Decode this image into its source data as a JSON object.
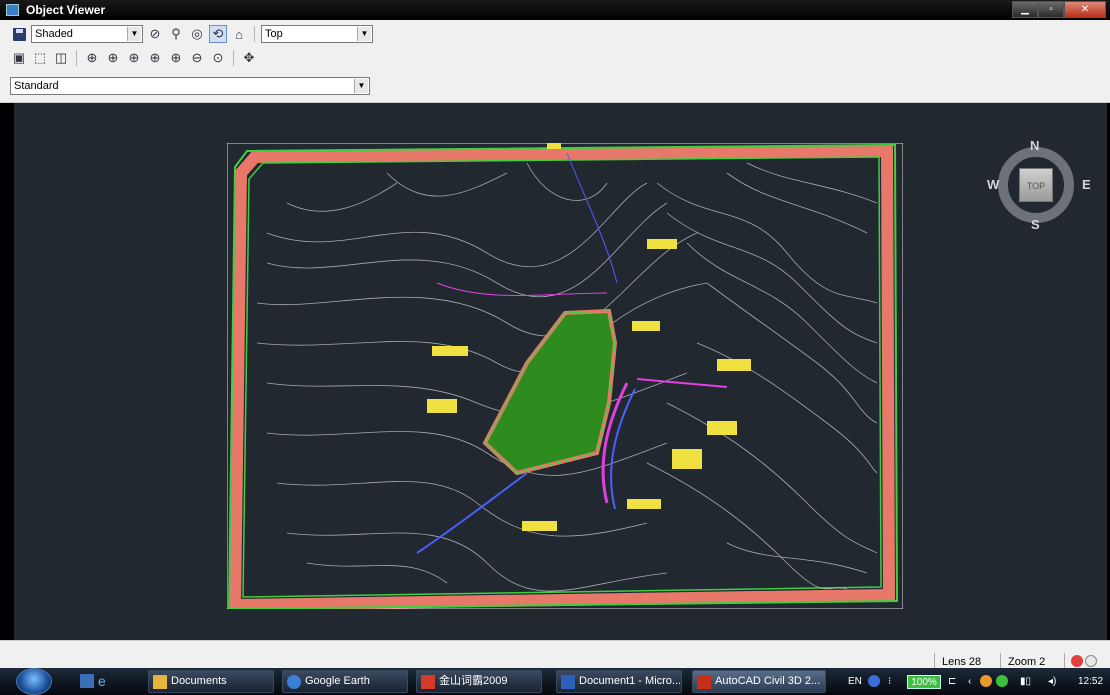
{
  "window": {
    "title": "Object Viewer"
  },
  "toolbar": {
    "visual_style": "Shaded",
    "view": "Top",
    "style_set": "Standard"
  },
  "viewcube": {
    "north": "N",
    "south": "S",
    "east": "E",
    "west": "W",
    "face": "TOP"
  },
  "status": {
    "lens": "Lens 28",
    "zoom": "Zoom 2"
  },
  "taskbar": {
    "tasks": [
      {
        "label": "Documents",
        "icon": "folder-icon",
        "color": "#e8b33a"
      },
      {
        "label": "Google Earth",
        "icon": "google-earth-icon",
        "color": "#3a7fd8"
      },
      {
        "label": "金山词霸2009",
        "icon": "ciba-icon",
        "color": "#d83a2a"
      },
      {
        "label": "Document1 - Micro...",
        "icon": "word-icon",
        "color": "#2b5fb8"
      },
      {
        "label": "AutoCAD Civil 3D 2...",
        "icon": "autocad-icon",
        "color": "#c8301a"
      }
    ],
    "language": "EN",
    "battery": "100%",
    "clock": "12:52"
  },
  "colors": {
    "viewport_bg": "#212830",
    "site_fill": "#2e8b1e",
    "border_band": "#f08070"
  }
}
